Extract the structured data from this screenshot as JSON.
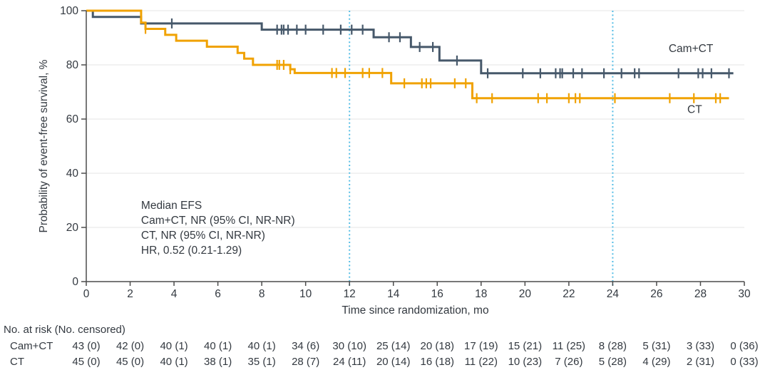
{
  "chart_data": {
    "type": "line",
    "subtype": "kaplan-meier-step",
    "title": "",
    "xlabel": "Time since randomization, mo",
    "ylabel": "Probability of event-free survival, %",
    "xlim": [
      0,
      30
    ],
    "ylim": [
      0,
      100
    ],
    "xticks": [
      0,
      2,
      4,
      6,
      8,
      10,
      12,
      14,
      16,
      18,
      20,
      22,
      24,
      26,
      28,
      30
    ],
    "yticks": [
      0,
      20,
      40,
      60,
      80,
      100
    ],
    "grid": "horizontal-light",
    "legend_position": "curve-end-labels",
    "reference_lines_x": [
      12,
      24
    ],
    "colors": {
      "cam_ct": "#46586a",
      "ct": "#f0a202",
      "reference_line": "#55bde5",
      "grid": "#ebebeb",
      "axis": "#4c4c4c",
      "text": "#333940"
    },
    "series": [
      {
        "name": "Cam+CT",
        "color_key": "cam_ct",
        "steps": [
          [
            0,
            100
          ],
          [
            0.3,
            97.7
          ],
          [
            2.5,
            95.3
          ],
          [
            8.0,
            93.0
          ],
          [
            13.1,
            90.2
          ],
          [
            14.8,
            86.6
          ],
          [
            16.1,
            81.6
          ],
          [
            18.0,
            76.9
          ]
        ],
        "end_x": 29.5,
        "censor_times": [
          3.9,
          8.7,
          8.9,
          9.0,
          9.2,
          9.6,
          10.0,
          10.8,
          11.6,
          12.1,
          12.6,
          13.8,
          14.3,
          15.2,
          15.8,
          16.9,
          18.3,
          19.9,
          20.7,
          21.4,
          21.6,
          21.7,
          22.2,
          22.6,
          23.6,
          24.4,
          25.0,
          25.2,
          27.0,
          27.9,
          28.1,
          28.5,
          29.3
        ],
        "label": {
          "text": "Cam+CT",
          "x": 26.55,
          "y": 84.8
        }
      },
      {
        "name": "CT",
        "color_key": "ct",
        "steps": [
          [
            0,
            100
          ],
          [
            2.5,
            95.6
          ],
          [
            2.7,
            93.3
          ],
          [
            3.6,
            91.1
          ],
          [
            4.1,
            88.9
          ],
          [
            5.5,
            86.7
          ],
          [
            6.9,
            84.4
          ],
          [
            7.2,
            82.3
          ],
          [
            7.6,
            80.0
          ],
          [
            9.3,
            78.4
          ],
          [
            9.5,
            77.0
          ],
          [
            13.9,
            73.2
          ],
          [
            17.6,
            67.7
          ]
        ],
        "end_x": 29.3,
        "censor_times": [
          2.7,
          8.7,
          8.8,
          9.0,
          9.3,
          11.2,
          11.4,
          11.8,
          12.6,
          12.9,
          13.5,
          14.5,
          15.3,
          15.5,
          15.7,
          16.8,
          17.3,
          17.8,
          18.5,
          20.6,
          21.0,
          22.0,
          22.3,
          22.5,
          24.1,
          26.6,
          27.7,
          28.7,
          28.9
        ],
        "label": {
          "text": "CT",
          "x": 27.4,
          "y": 62.3
        }
      }
    ],
    "annotation": {
      "x_mo": 2.5,
      "lines": [
        "Median EFS",
        "Cam+CT, NR (95% CI, NR-NR)",
        "CT, NR (95% CI, NR-NR)",
        "HR, 0.52 (0.21-1.29)"
      ]
    }
  },
  "risk_table": {
    "header": "No. at risk (No. censored)",
    "times": [
      0,
      2,
      4,
      6,
      8,
      10,
      12,
      14,
      16,
      18,
      20,
      22,
      24,
      26,
      28,
      30
    ],
    "rows": [
      {
        "label": "Cam+CT",
        "values": [
          "43 (0)",
          "42 (0)",
          "40 (1)",
          "40 (1)",
          "40 (1)",
          "34 (6)",
          "30 (10)",
          "25 (14)",
          "20 (18)",
          "17 (19)",
          "15 (21)",
          "11 (25)",
          "8 (28)",
          "5 (31)",
          "3 (33)",
          "0 (36)"
        ]
      },
      {
        "label": "CT",
        "values": [
          "45 (0)",
          "45 (0)",
          "40 (1)",
          "38 (1)",
          "35 (1)",
          "28 (7)",
          "24 (11)",
          "20 (14)",
          "16 (18)",
          "11 (22)",
          "10 (23)",
          "7 (26)",
          "5 (28)",
          "4 (29)",
          "2 (31)",
          "0 (33)"
        ]
      }
    ]
  }
}
